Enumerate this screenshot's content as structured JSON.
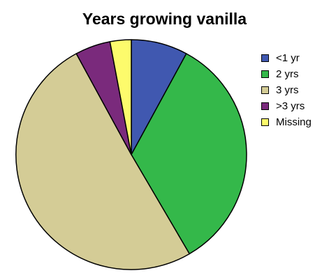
{
  "chart_data": {
    "type": "pie",
    "title": "Years growing vanilla",
    "categories": [
      "<1 yr",
      "2 yrs",
      "3 yrs",
      ">3 yrs",
      "Missing"
    ],
    "values": [
      8,
      34,
      51,
      5,
      3
    ],
    "colors": [
      "#4058b0",
      "#34b84a",
      "#d4cc96",
      "#7a2a7c",
      "#fdfb6c"
    ],
    "start_angle_deg": 0,
    "direction": "clockwise",
    "legend_position": "right"
  }
}
